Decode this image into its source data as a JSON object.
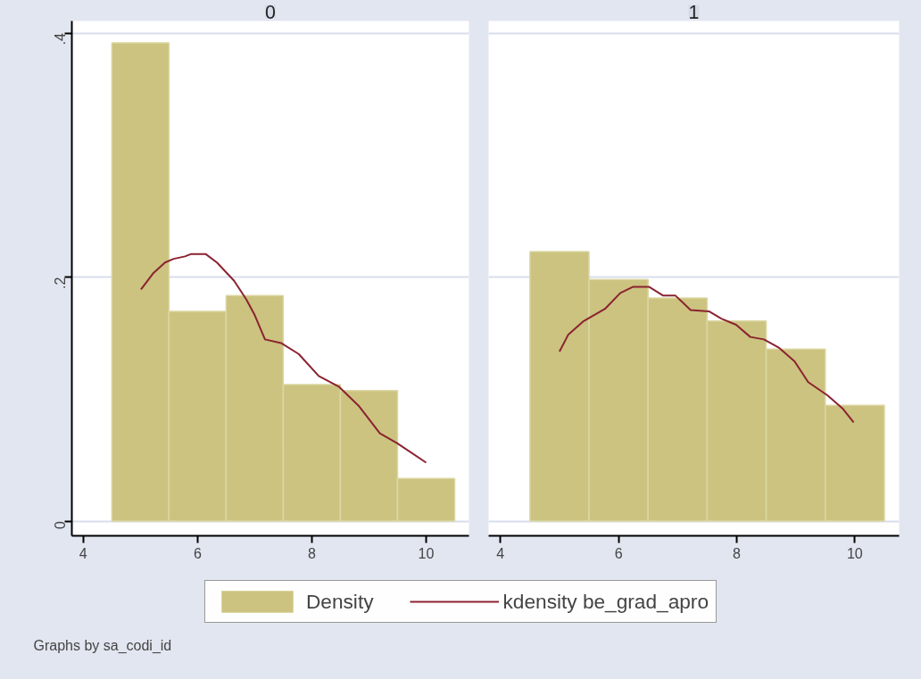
{
  "chart_data": [
    {
      "type": "histogram",
      "title": "0",
      "bins": [
        4.5,
        5.5,
        6.5,
        7.5,
        8.5,
        9.5,
        10.5
      ],
      "xlim": [
        3.8,
        10.75
      ],
      "ylim": [
        -0.012,
        0.41
      ],
      "xticks": [
        4,
        6,
        8,
        10
      ],
      "yticks": [
        {
          "value": 0,
          "label": "0"
        },
        {
          "value": 0.2,
          "label": ".2"
        },
        {
          "value": 0.4,
          "label": ".4"
        }
      ],
      "grid": "y",
      "legend": "bottom",
      "annotations": [
        "Graphs by sa_codi_id"
      ],
      "series": [
        {
          "name": "Density",
          "color": "#cbc37f",
          "values": [
            0.392,
            0.172,
            0.185,
            0.112,
            0.107,
            0.035
          ]
        },
        {
          "name": "kdensity be_grad_apro",
          "type": "line",
          "color": "#8b2231",
          "x": [
            5.01,
            5.22,
            5.43,
            5.58,
            5.78,
            5.89,
            6.14,
            6.34,
            6.64,
            6.85,
            7.0,
            7.18,
            7.46,
            7.77,
            8.12,
            8.48,
            8.83,
            9.19,
            9.49,
            10.0
          ],
          "values": [
            0.19,
            0.203,
            0.212,
            0.215,
            0.217,
            0.219,
            0.219,
            0.212,
            0.197,
            0.182,
            0.169,
            0.149,
            0.146,
            0.137,
            0.119,
            0.11,
            0.094,
            0.072,
            0.064,
            0.048
          ]
        }
      ]
    },
    {
      "type": "histogram",
      "title": "1",
      "bins": [
        4.5,
        5.5,
        6.5,
        7.5,
        8.5,
        9.5,
        10.5
      ],
      "xlim": [
        3.8,
        10.75
      ],
      "ylim": [
        -0.012,
        0.41
      ],
      "xticks": [
        4,
        6,
        8,
        10
      ],
      "yticks": [
        0,
        0.2,
        0.4
      ],
      "grid": "y",
      "tick_labels": "x",
      "series": [
        {
          "color": "#cbc37f",
          "values": [
            0.221,
            0.198,
            0.183,
            0.164,
            0.141,
            0.095
          ]
        },
        {
          "type": "line",
          "color": "#8b2231",
          "x": [
            5.0,
            5.15,
            5.41,
            5.77,
            6.03,
            6.24,
            6.52,
            6.75,
            6.96,
            7.22,
            7.53,
            7.74,
            7.99,
            8.23,
            8.46,
            8.72,
            8.98,
            9.21,
            9.54,
            9.8,
            9.98
          ],
          "values": [
            0.139,
            0.153,
            0.164,
            0.174,
            0.187,
            0.192,
            0.192,
            0.185,
            0.185,
            0.173,
            0.172,
            0.166,
            0.161,
            0.151,
            0.149,
            0.142,
            0.131,
            0.114,
            0.103,
            0.092,
            0.081
          ]
        }
      ]
    }
  ]
}
